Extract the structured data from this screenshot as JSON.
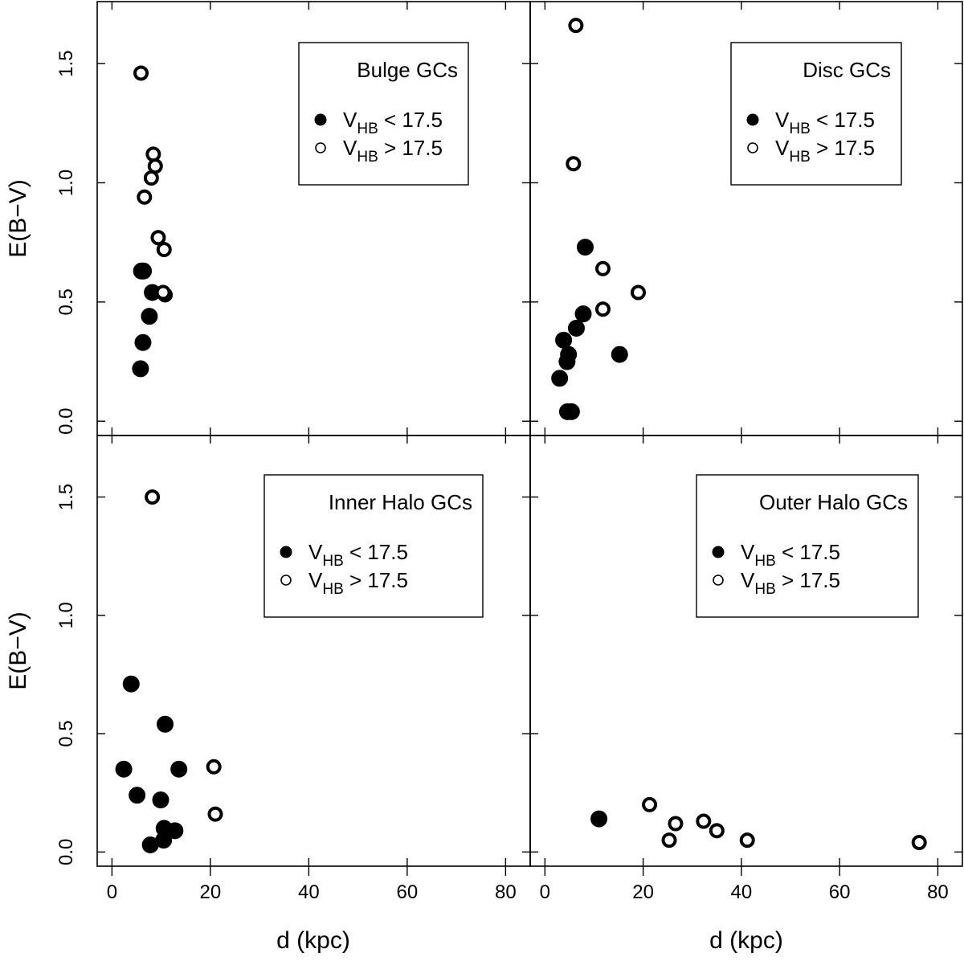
{
  "chart_data": [
    {
      "type": "scatter",
      "panel": "top-left",
      "title": "Bulge GCs",
      "xlabel": "",
      "ylabel": "E(B−V)",
      "xlim": [
        -3,
        85
      ],
      "ylim": [
        -0.06,
        1.76
      ],
      "legend_position": "top-right",
      "series": [
        {
          "name": "VHB < 17.5",
          "marker": "filled",
          "x": [
            5.8,
            6.3,
            7.6,
            8.2,
            6.0,
            6.4
          ],
          "y": [
            0.22,
            0.33,
            0.44,
            0.54,
            0.63,
            0.63
          ]
        },
        {
          "name": "VHB > 17.5",
          "marker": "open",
          "x": [
            5.9,
            6.6,
            8.0,
            8.4,
            8.8,
            9.4,
            10.6,
            10.8,
            10.4
          ],
          "y": [
            1.46,
            0.94,
            1.02,
            1.12,
            1.07,
            0.77,
            0.72,
            0.53,
            0.54
          ]
        }
      ]
    },
    {
      "type": "scatter",
      "panel": "top-right",
      "title": "Disc GCs",
      "xlabel": "",
      "ylabel": "",
      "xlim": [
        -3,
        85
      ],
      "ylim": [
        -0.06,
        1.76
      ],
      "legend_position": "top-right",
      "series": [
        {
          "name": "VHB < 17.5",
          "marker": "filled",
          "x": [
            3.0,
            3.8,
            4.5,
            4.8,
            6.4,
            7.8,
            8.2,
            15.2,
            4.6,
            5.4
          ],
          "y": [
            0.18,
            0.34,
            0.25,
            0.28,
            0.39,
            0.45,
            0.73,
            0.28,
            0.04,
            0.04
          ]
        },
        {
          "name": "VHB > 17.5",
          "marker": "open",
          "x": [
            6.3,
            5.8,
            11.8,
            11.8,
            19.0
          ],
          "y": [
            1.66,
            1.08,
            0.64,
            0.47,
            0.54
          ]
        }
      ]
    },
    {
      "type": "scatter",
      "panel": "bottom-left",
      "title": "Inner Halo GCs",
      "xlabel": "d (kpc)",
      "ylabel": "E(B−V)",
      "xlim": [
        -3,
        85
      ],
      "ylim": [
        -0.06,
        1.76
      ],
      "xticks": [
        0,
        20,
        40,
        60,
        80
      ],
      "legend_position": "top-right",
      "series": [
        {
          "name": "VHB < 17.5",
          "marker": "filled",
          "x": [
            2.4,
            3.9,
            5.1,
            7.8,
            9.9,
            10.5,
            10.6,
            10.8,
            12.8,
            13.6
          ],
          "y": [
            0.35,
            0.71,
            0.24,
            0.03,
            0.22,
            0.05,
            0.1,
            0.54,
            0.09,
            0.35
          ]
        },
        {
          "name": "VHB > 17.5",
          "marker": "open",
          "x": [
            8.2,
            20.7,
            21.0
          ],
          "y": [
            1.5,
            0.36,
            0.16
          ]
        }
      ]
    },
    {
      "type": "scatter",
      "panel": "bottom-right",
      "title": "Outer Halo GCs",
      "xlabel": "d (kpc)",
      "ylabel": "",
      "xlim": [
        -3,
        85
      ],
      "ylim": [
        -0.06,
        1.76
      ],
      "xticks": [
        0,
        20,
        40,
        60,
        80
      ],
      "legend_position": "top-right",
      "series": [
        {
          "name": "VHB < 17.5",
          "marker": "filled",
          "x": [
            11.0
          ],
          "y": [
            0.14
          ]
        },
        {
          "name": "VHB > 17.5",
          "marker": "open",
          "x": [
            21.3,
            25.3,
            26.6,
            32.3,
            35.0,
            41.2,
            76.2
          ],
          "y": [
            0.2,
            0.05,
            0.12,
            0.13,
            0.09,
            0.05,
            0.04
          ]
        }
      ]
    }
  ],
  "axes": {
    "ylabel": "E(B−V)",
    "xlabel": "d (kpc)",
    "xticks": [
      0,
      20,
      40,
      60,
      80
    ],
    "xtick_labels": [
      "0",
      "20",
      "40",
      "60",
      "80"
    ],
    "yticks": [
      0.0,
      0.5,
      1.0,
      1.5
    ],
    "ytick_labels": [
      "0.0",
      "0.5",
      "1.0",
      "1.5"
    ]
  },
  "legend": {
    "label_main": "V",
    "label_sub": "HB",
    "below_rest": " < 17.5",
    "above_rest": " > 17.5"
  }
}
